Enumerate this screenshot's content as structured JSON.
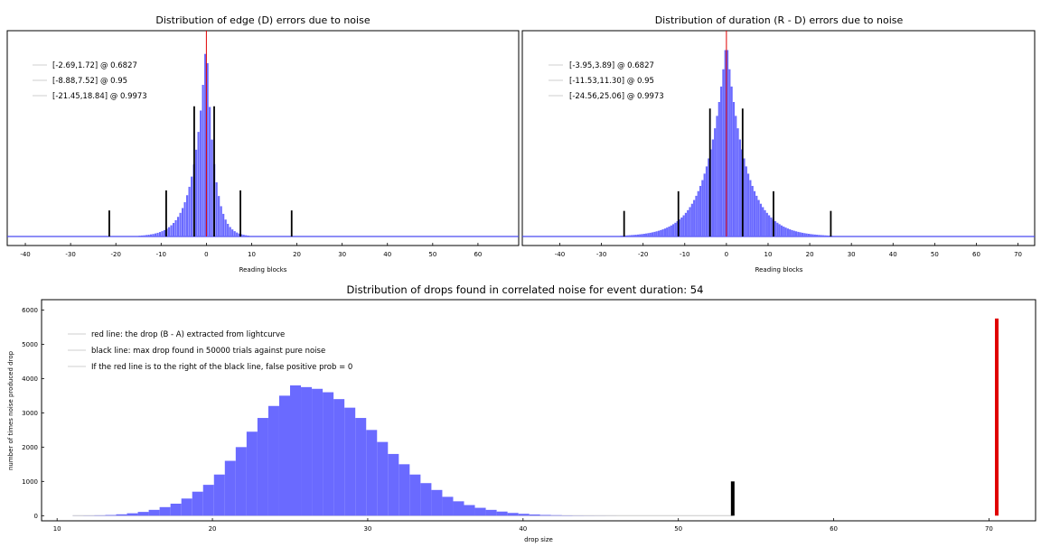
{
  "colors": {
    "hist": "#6a6aff",
    "hist_stroke": "#4a4af0",
    "red_line": "#e00000",
    "black_line": "#000000",
    "frame": "#000000"
  },
  "chart_data": [
    {
      "id": "edge",
      "type": "bar",
      "title": "Distribution of edge (D) errors due to noise",
      "xlabel": "Reading blocks",
      "ylabel": "",
      "xlim": [
        -44,
        69
      ],
      "xticks": [
        -40,
        -30,
        -20,
        -10,
        0,
        10,
        20,
        30,
        40,
        50,
        60
      ],
      "grid": false,
      "legend_position": "top-left",
      "histogram": {
        "center": 0,
        "scale_left": 2.69,
        "scale_right": 1.72,
        "peak": 1.0
      },
      "annotations": [
        {
          "text": "[-2.69,1.72] @ 0.6827",
          "lo": -2.69,
          "hi": 1.72,
          "height": 0.65
        },
        {
          "text": "[-8.88,7.52] @ 0.95",
          "lo": -8.88,
          "hi": 7.52,
          "height": 0.23
        },
        {
          "text": "[-21.45,18.84] @ 0.9973",
          "lo": -21.45,
          "hi": 18.84,
          "height": 0.13
        }
      ],
      "red_line_x": 0
    },
    {
      "id": "duration",
      "type": "bar",
      "title": "Distribution of duration (R - D) errors due to noise",
      "xlabel": "Reading blocks",
      "ylabel": "",
      "xlim": [
        -49,
        74
      ],
      "xticks": [
        -40,
        -30,
        -20,
        -10,
        0,
        10,
        20,
        30,
        40,
        50,
        60,
        70
      ],
      "grid": false,
      "legend_position": "top-left",
      "histogram": {
        "center": 0,
        "scale_left": 4.6,
        "scale_right": 4.6,
        "peak": 1.0
      },
      "annotations": [
        {
          "text": "[-3.95,3.89] @ 0.6827",
          "lo": -3.95,
          "hi": 3.89,
          "height": 0.65
        },
        {
          "text": "[-11.53,11.30] @ 0.95",
          "lo": -11.53,
          "hi": 11.3,
          "height": 0.23
        },
        {
          "text": "[-24.56,25.06] @ 0.9973",
          "lo": -24.56,
          "hi": 25.06,
          "height": 0.13
        }
      ],
      "red_line_x": 0
    },
    {
      "id": "drops",
      "type": "bar",
      "title": "Distribution of drops found in correlated noise for event duration: 54",
      "xlabel": "drop size",
      "ylabel": "number of times noise produced drop",
      "xlim": [
        9,
        73
      ],
      "ylim": [
        -150,
        6300
      ],
      "xticks": [
        10,
        20,
        30,
        40,
        50,
        60,
        70
      ],
      "yticks": [
        0,
        1000,
        2000,
        3000,
        4000,
        5000,
        6000
      ],
      "grid": false,
      "legend_position": "top-left",
      "bin_start": 11,
      "bin_width": 0.7,
      "values": [
        2,
        5,
        10,
        20,
        40,
        70,
        110,
        170,
        250,
        350,
        500,
        700,
        900,
        1200,
        1600,
        2000,
        2450,
        2850,
        3200,
        3500,
        3800,
        3750,
        3700,
        3600,
        3400,
        3150,
        2850,
        2500,
        2150,
        1800,
        1500,
        1200,
        950,
        750,
        550,
        420,
        310,
        230,
        170,
        120,
        80,
        55,
        35,
        22,
        14,
        8,
        5,
        3,
        2,
        1
      ],
      "legend": [
        "red line: the drop (B - A) extracted from lightcurve",
        "black line: max drop found in 50000 trials against pure noise",
        "If the red line is to the right of the black line, false positive prob = 0"
      ],
      "black_line": {
        "x": 53.5,
        "height": 1000
      },
      "red_line": {
        "x": 70.5,
        "height": 5750
      }
    }
  ]
}
